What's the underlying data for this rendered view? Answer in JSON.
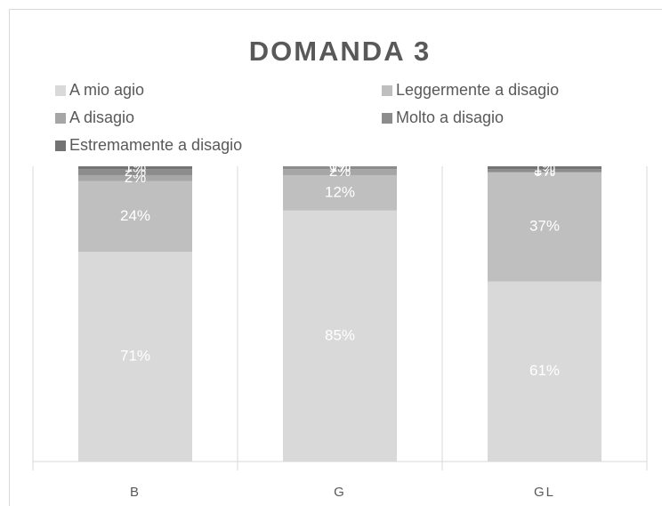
{
  "chart_data": {
    "type": "stacked_bar_100",
    "title": "DOMANDA 3",
    "categories": [
      "B",
      "G",
      "GL"
    ],
    "series": [
      {
        "name": "A mio agio",
        "color": "#d9d9d9",
        "values": [
          71,
          85,
          61
        ],
        "value_labels": [
          "71%",
          "85%",
          "61%"
        ]
      },
      {
        "name": "Leggermente a disagio",
        "color": "#bfbfbf",
        "values": [
          24,
          12,
          37
        ],
        "value_labels": [
          "24%",
          "12%",
          "37%"
        ]
      },
      {
        "name": "A disagio",
        "color": "#a6a6a6",
        "values": [
          2,
          2,
          0
        ],
        "value_labels": [
          "2%",
          "2%",
          "0%"
        ]
      },
      {
        "name": "Molto a disagio",
        "color": "#8c8c8c",
        "values": [
          2,
          1,
          1
        ],
        "value_labels": [
          "2%",
          "1%",
          "1%"
        ]
      },
      {
        "name": "Estremamente a disagio",
        "color": "#737373",
        "values": [
          1,
          0,
          1
        ],
        "value_labels": [
          "1%",
          "0%",
          "1%"
        ]
      }
    ],
    "ylim": [
      0,
      100
    ],
    "legend": "top"
  }
}
